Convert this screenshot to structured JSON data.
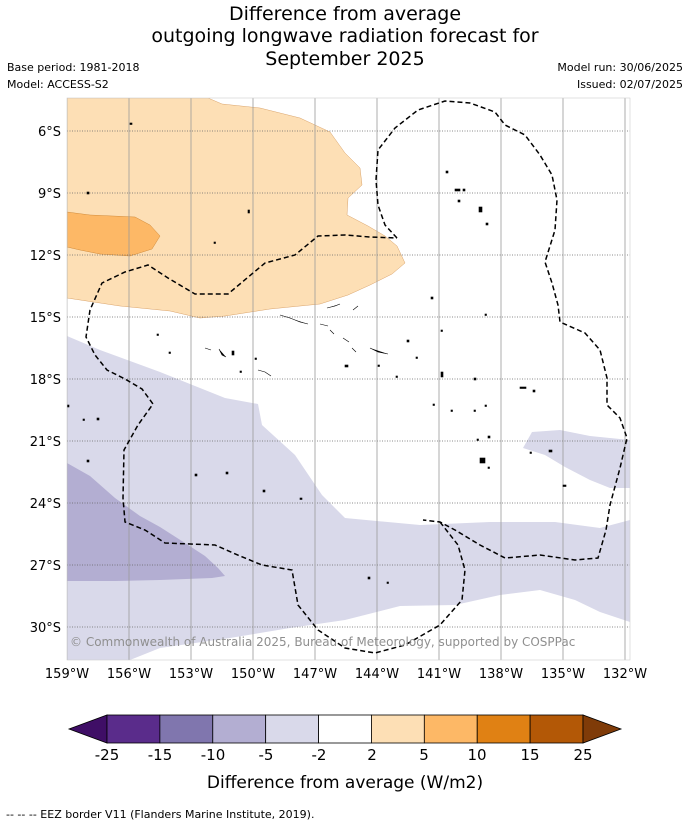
{
  "title": {
    "line1": "Difference from average",
    "line2": "outgoing longwave radiation forecast for",
    "line3": "September 2025"
  },
  "meta": {
    "base_period": "Base period: 1981-2018",
    "model": "Model: ACCESS-S2",
    "model_run": "Model run: 30/06/2025",
    "issued": "Issued: 02/07/2025"
  },
  "map": {
    "lat_labels": [
      "6°S",
      "9°S",
      "12°S",
      "15°S",
      "18°S",
      "21°S",
      "24°S",
      "27°S",
      "30°S"
    ],
    "lon_labels": [
      "159°W",
      "156°W",
      "153°W",
      "150°W",
      "147°W",
      "144°W",
      "141°W",
      "138°W",
      "135°W",
      "132°W"
    ],
    "copyright": "© Commonwealth of Australia 2025, Bureau of Meteorology, supported by COSPPac"
  },
  "colorbar": {
    "ticks": [
      "-25",
      "-15",
      "-10",
      "-5",
      "-2",
      "2",
      "5",
      "10",
      "15",
      "25"
    ],
    "colors": [
      "#3f0e66",
      "#5a2c8b",
      "#8076ae",
      "#b3aed2",
      "#d9d9ea",
      "#ffffff",
      "#fddfb5",
      "#fdb866",
      "#e08114",
      "#b35806",
      "#7f3b08"
    ],
    "label": "Difference from average (W/m2)"
  },
  "footer": "--  --  -- EEZ border V11 (Flanders Marine Institute, 2019)."
}
